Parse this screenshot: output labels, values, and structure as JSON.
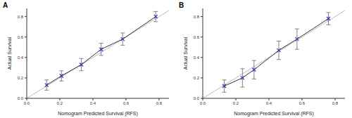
{
  "chart_data": [
    {
      "type": "line",
      "title": "A",
      "x_label": "Nomogram Predicted Survival (RFS)",
      "y_label": "Actual Survival",
      "xlim": [
        0,
        0.86
      ],
      "ylim": [
        0,
        0.88
      ],
      "xticks": [
        {
          "value": 0,
          "label": "0.0"
        },
        0.2,
        0.4,
        0.6,
        0.8
      ],
      "yticks": [
        {
          "value": 0,
          "label": "0.0"
        },
        0.2,
        0.4,
        0.6,
        0.8
      ],
      "series": [
        {
          "color": "#3838b8",
          "marker": "x",
          "x": [
            0.12,
            0.21,
            0.33,
            0.45,
            0.58,
            0.78
          ],
          "values": [
            0.13,
            0.22,
            0.33,
            0.48,
            0.58,
            0.8
          ],
          "error": [
            0.05,
            0.05,
            0.06,
            0.06,
            0.06,
            0.05
          ]
        }
      ]
    },
    {
      "type": "line",
      "title": "B",
      "x_label": "Nomogram Predicted Survival (RFS)",
      "y_label": "Actual Survival",
      "xlim": [
        0,
        0.86
      ],
      "ylim": [
        0,
        0.88
      ],
      "xticks": [
        {
          "value": 0,
          "label": "0.0"
        },
        0.2,
        0.4,
        0.6,
        0.8
      ],
      "yticks": [
        {
          "value": 0,
          "label": "0.0"
        },
        0.2,
        0.4,
        0.6,
        0.8
      ],
      "series": [
        {
          "color": "#3838b8",
          "marker": "x",
          "x": [
            0.13,
            0.24,
            0.31,
            0.46,
            0.57,
            0.76
          ],
          "values": [
            0.12,
            0.2,
            0.28,
            0.47,
            0.58,
            0.78
          ],
          "error": [
            0.06,
            0.09,
            0.09,
            0.09,
            0.1,
            0.06
          ]
        }
      ]
    }
  ]
}
